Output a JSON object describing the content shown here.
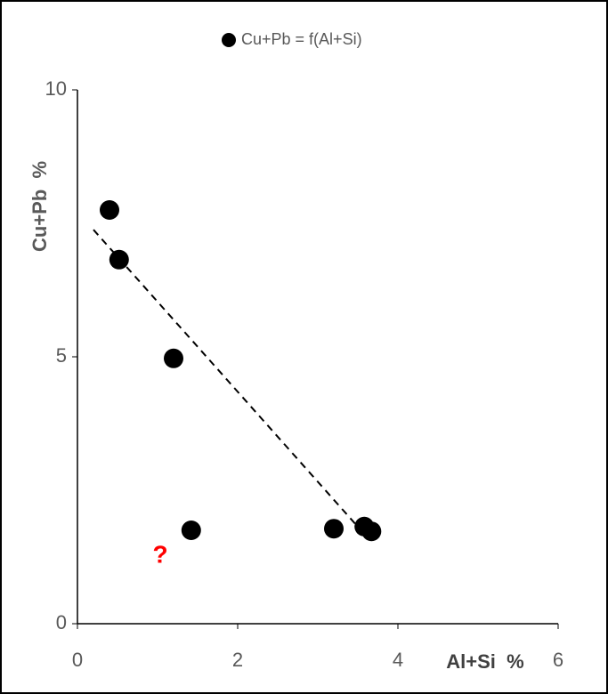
{
  "chart_data": {
    "type": "scatter",
    "x_label": "Al+Si  %",
    "y_label": "Cu+Pb  %",
    "series": [
      {
        "name": "Cu+Pb = f(Al+Si)",
        "color": "#000000",
        "x": [
          0.4,
          0.52,
          1.2,
          1.42,
          3.2,
          3.58,
          3.67
        ],
        "values": [
          7.75,
          6.82,
          4.97,
          1.75,
          1.78,
          1.82,
          1.73
        ]
      }
    ],
    "trendline": {
      "x": [
        0.2,
        3.48
      ],
      "values": [
        7.38,
        1.85
      ],
      "color": "#000000"
    },
    "annotation": {
      "text": "?",
      "color": "#ff0000"
    },
    "xlim": [
      0,
      6
    ],
    "xticks": [
      0,
      2,
      4,
      6
    ],
    "ylim": [
      0,
      10
    ],
    "yticks": [
      0,
      5,
      10
    ],
    "grid": false,
    "legend": "top"
  }
}
